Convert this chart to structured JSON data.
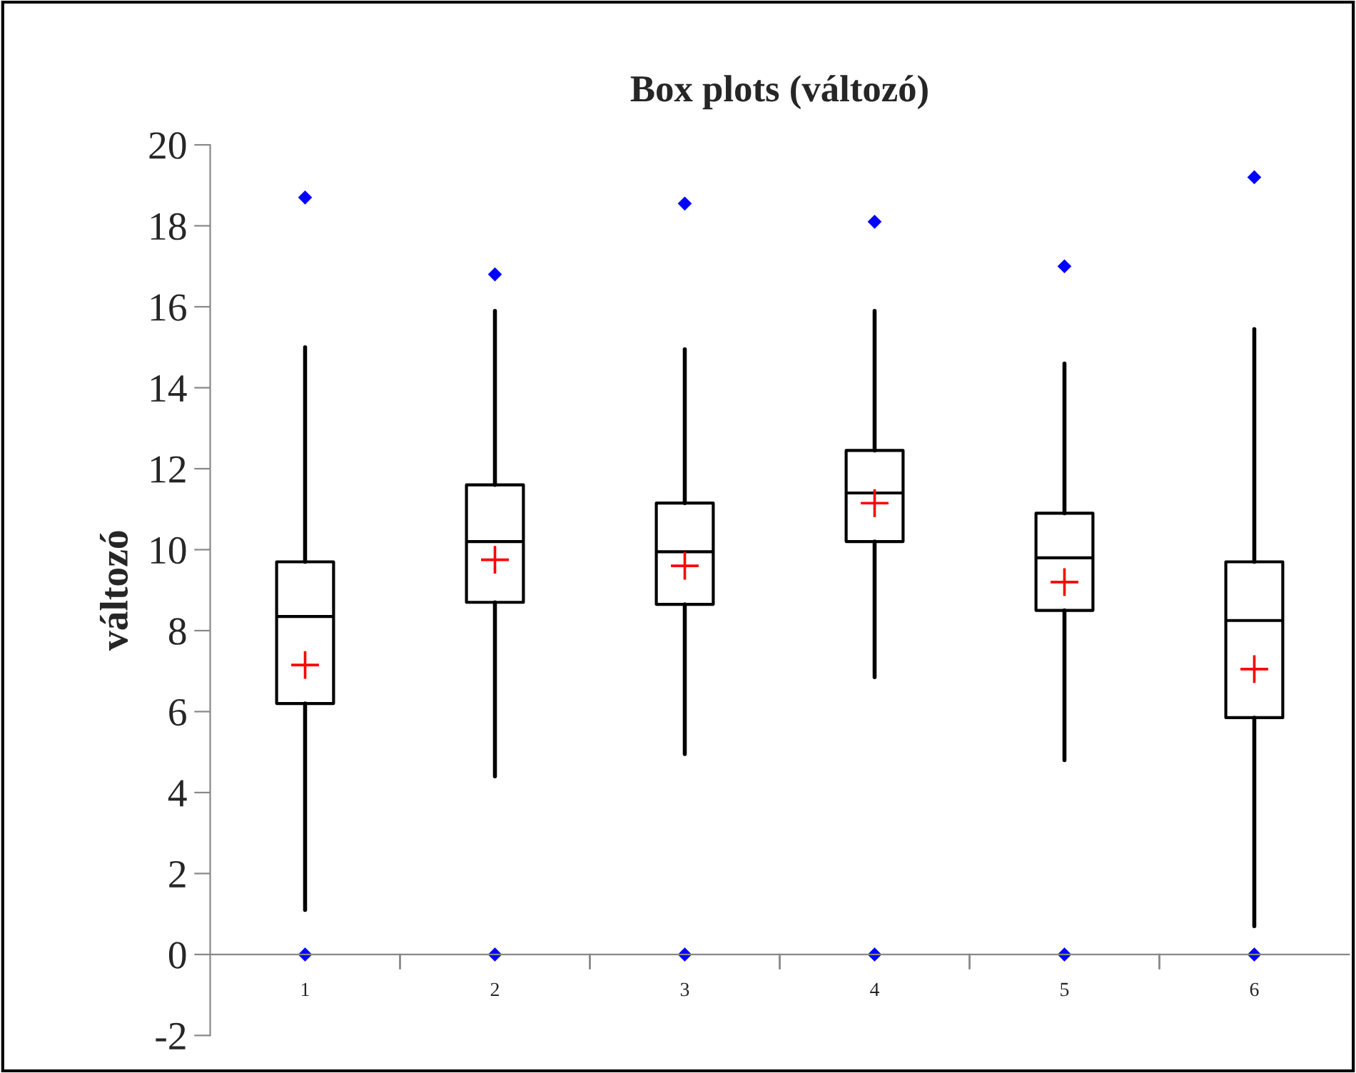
{
  "chart_data": {
    "type": "box",
    "title": "Box plots (változó)",
    "ylabel": "változó",
    "categories": [
      "1",
      "2",
      "3",
      "4",
      "5",
      "6"
    ],
    "boxes": [
      {
        "low": 1.1,
        "q1": 6.2,
        "median": 8.35,
        "q3": 9.7,
        "high": 15.0,
        "mean": 7.15,
        "outliers": [
          18.7,
          0
        ]
      },
      {
        "low": 4.4,
        "q1": 8.7,
        "median": 10.2,
        "q3": 11.6,
        "high": 15.9,
        "mean": 9.75,
        "outliers": [
          16.8,
          0
        ]
      },
      {
        "low": 4.95,
        "q1": 8.65,
        "median": 9.95,
        "q3": 11.15,
        "high": 14.95,
        "mean": 9.6,
        "outliers": [
          18.55,
          0
        ]
      },
      {
        "low": 6.85,
        "q1": 10.2,
        "median": 11.4,
        "q3": 12.45,
        "high": 15.9,
        "mean": 11.15,
        "outliers": [
          18.1,
          0
        ]
      },
      {
        "low": 4.8,
        "q1": 8.5,
        "median": 9.8,
        "q3": 10.9,
        "high": 14.6,
        "mean": 9.2,
        "outliers": [
          17.0,
          0
        ]
      },
      {
        "low": 0.7,
        "q1": 5.85,
        "median": 8.25,
        "q3": 9.7,
        "high": 15.45,
        "mean": 7.05,
        "outliers": [
          19.2,
          0
        ]
      }
    ],
    "ylim": [
      -2,
      20
    ],
    "yticks": [
      -2,
      0,
      2,
      4,
      6,
      8,
      10,
      12,
      14,
      16,
      18,
      20
    ],
    "grid": false,
    "legend": false
  }
}
